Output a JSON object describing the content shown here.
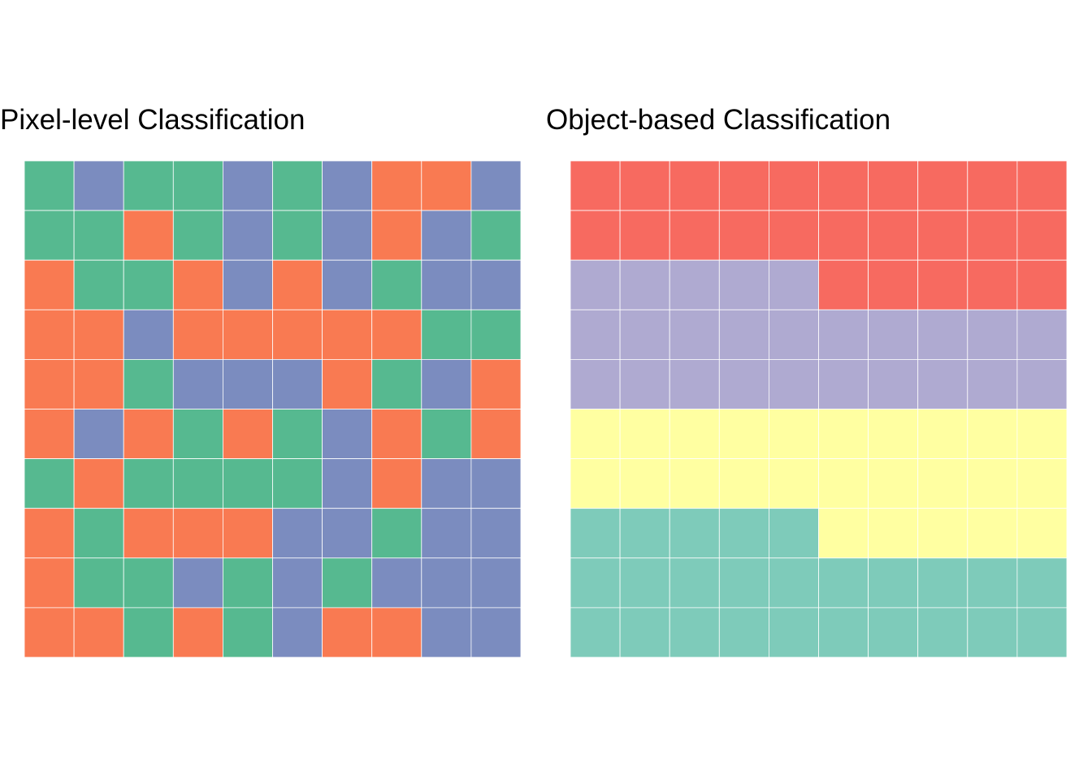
{
  "chart_data": [
    {
      "type": "heatmap",
      "title": "Pixel-level Classification",
      "rows": 10,
      "cols": 10,
      "palette": {
        "A": "#56b990",
        "B": "#7b8cbf",
        "C": "#f97a52"
      },
      "cells": [
        [
          "A",
          "B",
          "A",
          "A",
          "B",
          "A",
          "B",
          "C",
          "C",
          "B"
        ],
        [
          "A",
          "A",
          "C",
          "A",
          "B",
          "A",
          "B",
          "C",
          "B",
          "A"
        ],
        [
          "C",
          "A",
          "A",
          "C",
          "B",
          "C",
          "B",
          "A",
          "B",
          "B"
        ],
        [
          "C",
          "C",
          "B",
          "C",
          "C",
          "C",
          "C",
          "C",
          "A",
          "A"
        ],
        [
          "C",
          "C",
          "A",
          "B",
          "B",
          "B",
          "C",
          "A",
          "B",
          "C"
        ],
        [
          "C",
          "B",
          "C",
          "A",
          "C",
          "A",
          "B",
          "C",
          "A",
          "C"
        ],
        [
          "A",
          "C",
          "A",
          "A",
          "A",
          "A",
          "B",
          "C",
          "B",
          "B"
        ],
        [
          "C",
          "A",
          "C",
          "C",
          "C",
          "B",
          "B",
          "A",
          "B",
          "B"
        ],
        [
          "C",
          "A",
          "A",
          "B",
          "A",
          "B",
          "A",
          "B",
          "B",
          "B"
        ],
        [
          "C",
          "C",
          "A",
          "C",
          "A",
          "B",
          "C",
          "C",
          "B",
          "B"
        ]
      ]
    },
    {
      "type": "heatmap",
      "title": "Object-based Classification",
      "rows": 10,
      "cols": 10,
      "palette": {
        "R": "#f76a60",
        "P": "#afaad1",
        "Y": "#ffffa1",
        "T": "#7ecbba"
      },
      "cells": [
        [
          "R",
          "R",
          "R",
          "R",
          "R",
          "R",
          "R",
          "R",
          "R",
          "R"
        ],
        [
          "R",
          "R",
          "R",
          "R",
          "R",
          "R",
          "R",
          "R",
          "R",
          "R"
        ],
        [
          "P",
          "P",
          "P",
          "P",
          "P",
          "R",
          "R",
          "R",
          "R",
          "R"
        ],
        [
          "P",
          "P",
          "P",
          "P",
          "P",
          "P",
          "P",
          "P",
          "P",
          "P"
        ],
        [
          "P",
          "P",
          "P",
          "P",
          "P",
          "P",
          "P",
          "P",
          "P",
          "P"
        ],
        [
          "Y",
          "Y",
          "Y",
          "Y",
          "Y",
          "Y",
          "Y",
          "Y",
          "Y",
          "Y"
        ],
        [
          "Y",
          "Y",
          "Y",
          "Y",
          "Y",
          "Y",
          "Y",
          "Y",
          "Y",
          "Y"
        ],
        [
          "T",
          "T",
          "T",
          "T",
          "T",
          "Y",
          "Y",
          "Y",
          "Y",
          "Y"
        ],
        [
          "T",
          "T",
          "T",
          "T",
          "T",
          "T",
          "T",
          "T",
          "T",
          "T"
        ],
        [
          "T",
          "T",
          "T",
          "T",
          "T",
          "T",
          "T",
          "T",
          "T",
          "T"
        ]
      ]
    }
  ]
}
